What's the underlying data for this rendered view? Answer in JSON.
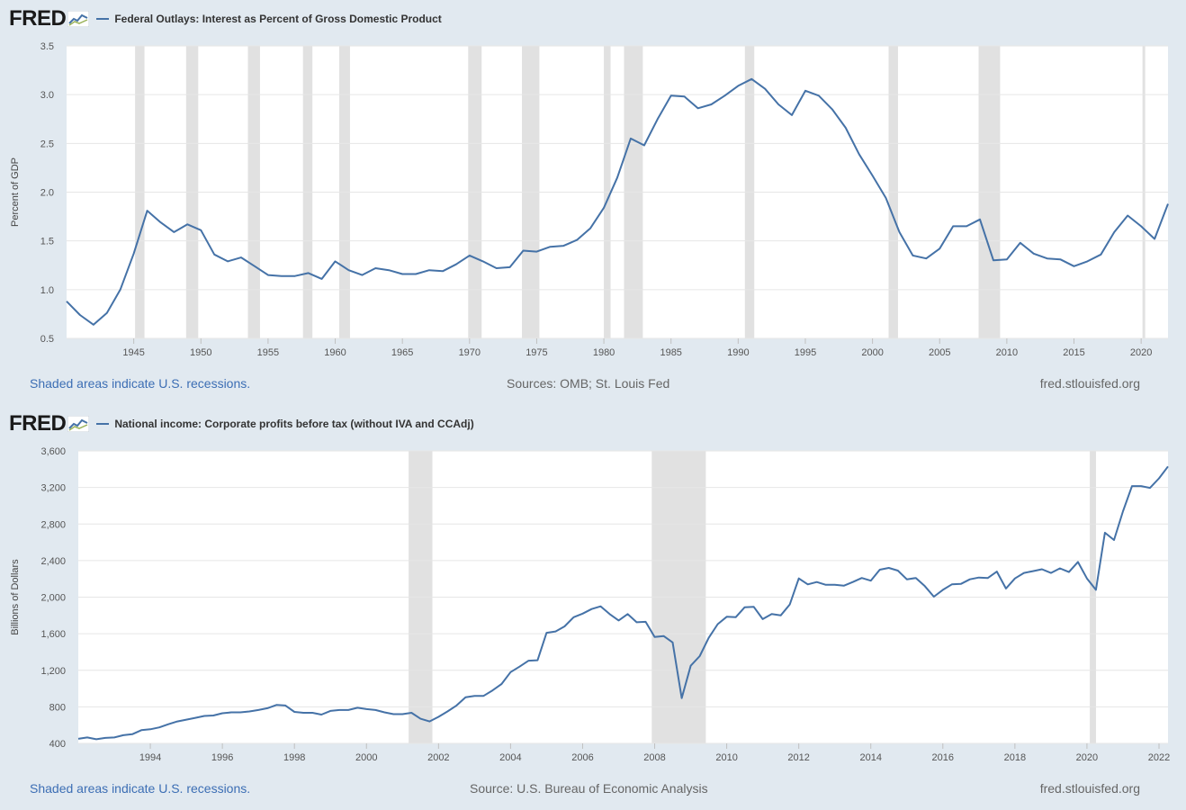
{
  "brand": "FRED",
  "colors": {
    "line": "#4572a7",
    "recession": "#e1e1e1",
    "grid": "#e6e6e6",
    "plot_bg": "#ffffff",
    "page_bg": "#e1e9f0"
  },
  "charts": [
    {
      "legend": "Federal Outlays: Interest as Percent of Gross Domestic Product",
      "footer": {
        "note": "Shaded areas indicate U.S. recessions.",
        "source": "Sources: OMB; St. Louis Fed",
        "site": "fred.stlouisfed.org"
      }
    },
    {
      "legend": "National income: Corporate profits before tax (without IVA and CCAdj)",
      "footer": {
        "note": "Shaded areas indicate U.S. recessions.",
        "source": "Source: U.S. Bureau of Economic Analysis",
        "site": "fred.stlouisfed.org"
      }
    }
  ],
  "chart_data": [
    {
      "type": "line",
      "title": "",
      "xlabel": "",
      "ylabel": "Percent of GDP",
      "xlim": [
        1940,
        2022
      ],
      "ylim": [
        0.5,
        3.5
      ],
      "yticks": [
        0.5,
        1.0,
        1.5,
        2.0,
        2.5,
        3.0,
        3.5
      ],
      "ytick_labels": [
        "0.5",
        "1.0",
        "1.5",
        "2.0",
        "2.5",
        "3.0",
        "3.5"
      ],
      "xticks": [
        1945,
        1950,
        1955,
        1960,
        1965,
        1970,
        1975,
        1980,
        1985,
        1990,
        1995,
        2000,
        2005,
        2010,
        2015,
        2020
      ],
      "xtick_labels": [
        "1945",
        "1950",
        "1955",
        "1960",
        "1965",
        "1970",
        "1975",
        "1980",
        "1985",
        "1990",
        "1995",
        "2000",
        "2005",
        "2010",
        "2015",
        "2020"
      ],
      "grid": true,
      "recessions": [
        [
          1945.1,
          1945.8
        ],
        [
          1948.9,
          1949.8
        ],
        [
          1953.5,
          1954.4
        ],
        [
          1957.6,
          1958.3
        ],
        [
          1960.3,
          1961.1
        ],
        [
          1969.9,
          1970.9
        ],
        [
          1973.9,
          1975.2
        ],
        [
          1980.0,
          1980.5
        ],
        [
          1981.5,
          1982.9
        ],
        [
          1990.5,
          1991.2
        ],
        [
          2001.2,
          2001.9
        ],
        [
          2007.9,
          2009.5
        ],
        [
          2020.1,
          2020.3
        ]
      ],
      "series": [
        {
          "x": [
            1940,
            1941,
            1942,
            1943,
            1944,
            1945,
            1946,
            1947,
            1948,
            1949,
            1950,
            1951,
            1952,
            1953,
            1954,
            1955,
            1956,
            1957,
            1958,
            1959,
            1960,
            1961,
            1962,
            1963,
            1964,
            1965,
            1966,
            1967,
            1968,
            1969,
            1970,
            1971,
            1972,
            1973,
            1974,
            1975,
            1976,
            1977,
            1978,
            1979,
            1980,
            1981,
            1982,
            1983,
            1984,
            1985,
            1986,
            1987,
            1988,
            1989,
            1990,
            1991,
            1992,
            1993,
            1994,
            1995,
            1996,
            1997,
            1998,
            1999,
            2000,
            2001,
            2002,
            2003,
            2004,
            2005,
            2006,
            2007,
            2008,
            2009,
            2010,
            2011,
            2012,
            2013,
            2014,
            2015,
            2016,
            2017,
            2018,
            2019,
            2020,
            2021,
            2022
          ],
          "values": [
            0.88,
            0.74,
            0.64,
            0.76,
            1.0,
            1.37,
            1.81,
            1.69,
            1.59,
            1.67,
            1.61,
            1.36,
            1.29,
            1.33,
            1.24,
            1.15,
            1.14,
            1.14,
            1.17,
            1.11,
            1.29,
            1.2,
            1.15,
            1.22,
            1.2,
            1.16,
            1.16,
            1.2,
            1.19,
            1.26,
            1.35,
            1.29,
            1.22,
            1.23,
            1.4,
            1.39,
            1.44,
            1.45,
            1.51,
            1.63,
            1.84,
            2.15,
            2.55,
            2.48,
            2.75,
            2.99,
            2.98,
            2.86,
            2.9,
            2.99,
            3.09,
            3.16,
            3.06,
            2.9,
            2.79,
            3.04,
            2.99,
            2.85,
            2.66,
            2.39,
            2.17,
            1.94,
            1.59,
            1.35,
            1.32,
            1.42,
            1.65,
            1.65,
            1.72,
            1.3,
            1.31,
            1.48,
            1.37,
            1.32,
            1.31,
            1.24,
            1.29,
            1.36,
            1.59,
            1.76,
            1.65,
            1.52,
            1.88
          ]
        }
      ]
    },
    {
      "type": "line",
      "title": "",
      "xlabel": "",
      "ylabel": "Billions of Dollars",
      "xlim": [
        1992.0,
        2022.25
      ],
      "ylim": [
        400,
        3600
      ],
      "yticks": [
        400,
        800,
        1200,
        1600,
        2000,
        2400,
        2800,
        3200,
        3600
      ],
      "ytick_labels": [
        "400",
        "800",
        "1,200",
        "1,600",
        "2,000",
        "2,400",
        "2,800",
        "3,200",
        "3,600"
      ],
      "xticks": [
        1994,
        1996,
        1998,
        2000,
        2002,
        2004,
        2006,
        2008,
        2010,
        2012,
        2014,
        2016,
        2018,
        2020,
        2022
      ],
      "xtick_labels": [
        "1994",
        "1996",
        "1998",
        "2000",
        "2002",
        "2004",
        "2006",
        "2008",
        "2010",
        "2012",
        "2014",
        "2016",
        "2018",
        "2020",
        "2022"
      ],
      "grid": true,
      "recessions": [
        [
          2001.17,
          2001.83
        ],
        [
          2007.92,
          2009.42
        ],
        [
          2020.08,
          2020.25
        ]
      ],
      "series": [
        {
          "x": [
            1992.0,
            1992.25,
            1992.5,
            1992.75,
            1993.0,
            1993.25,
            1993.5,
            1993.75,
            1994.0,
            1994.25,
            1994.5,
            1994.75,
            1995.0,
            1995.25,
            1995.5,
            1995.75,
            1996.0,
            1996.25,
            1996.5,
            1996.75,
            1997.0,
            1997.25,
            1997.5,
            1997.75,
            1998.0,
            1998.25,
            1998.5,
            1998.75,
            1999.0,
            1999.25,
            1999.5,
            1999.75,
            2000.0,
            2000.25,
            2000.5,
            2000.75,
            2001.0,
            2001.25,
            2001.5,
            2001.75,
            2002.0,
            2002.25,
            2002.5,
            2002.75,
            2003.0,
            2003.25,
            2003.5,
            2003.75,
            2004.0,
            2004.25,
            2004.5,
            2004.75,
            2005.0,
            2005.25,
            2005.5,
            2005.75,
            2006.0,
            2006.25,
            2006.5,
            2006.75,
            2007.0,
            2007.25,
            2007.5,
            2007.75,
            2008.0,
            2008.25,
            2008.5,
            2008.75,
            2009.0,
            2009.25,
            2009.5,
            2009.75,
            2010.0,
            2010.25,
            2010.5,
            2010.75,
            2011.0,
            2011.25,
            2011.5,
            2011.75,
            2012.0,
            2012.25,
            2012.5,
            2012.75,
            2013.0,
            2013.25,
            2013.5,
            2013.75,
            2014.0,
            2014.25,
            2014.5,
            2014.75,
            2015.0,
            2015.25,
            2015.5,
            2015.75,
            2016.0,
            2016.25,
            2016.5,
            2016.75,
            2017.0,
            2017.25,
            2017.5,
            2017.75,
            2018.0,
            2018.25,
            2018.5,
            2018.75,
            2019.0,
            2019.25,
            2019.5,
            2019.75,
            2020.0,
            2020.25,
            2020.5,
            2020.75,
            2021.0,
            2021.25,
            2021.5,
            2021.75,
            2022.0,
            2022.25
          ],
          "values": [
            450,
            465,
            445,
            460,
            465,
            490,
            500,
            545,
            555,
            575,
            610,
            640,
            660,
            680,
            700,
            705,
            730,
            740,
            740,
            750,
            765,
            785,
            820,
            815,
            745,
            735,
            735,
            715,
            755,
            765,
            765,
            790,
            775,
            765,
            740,
            720,
            720,
            735,
            670,
            640,
            690,
            750,
            815,
            905,
            920,
            920,
            980,
            1050,
            1180,
            1240,
            1305,
            1310,
            1610,
            1625,
            1680,
            1780,
            1820,
            1870,
            1900,
            1815,
            1745,
            1815,
            1725,
            1730,
            1565,
            1575,
            1505,
            895,
            1250,
            1355,
            1555,
            1705,
            1785,
            1780,
            1890,
            1895,
            1760,
            1815,
            1800,
            1920,
            2205,
            2140,
            2165,
            2135,
            2135,
            2125,
            2165,
            2210,
            2180,
            2300,
            2320,
            2290,
            2195,
            2210,
            2120,
            2005,
            2080,
            2140,
            2145,
            2195,
            2215,
            2210,
            2280,
            2095,
            2205,
            2265,
            2285,
            2305,
            2265,
            2315,
            2275,
            2385,
            2205,
            2080,
            2705,
            2625,
            2940,
            3215,
            3215,
            3195,
            3300,
            3430
          ]
        }
      ]
    }
  ]
}
